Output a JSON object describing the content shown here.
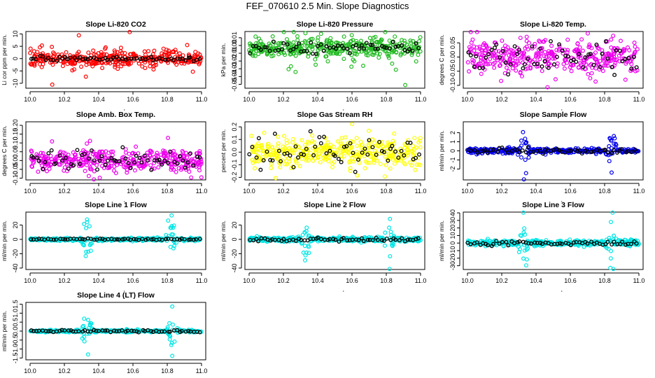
{
  "figure_title": "FEF_070610  2.5 Min. Slope Diagnostics",
  "chart_data": [
    {
      "type": "scatter",
      "title": "Slope Li-820 CO2",
      "ylabel": "Li cor ppm per min.",
      "color": "#ff0000",
      "xlim": [
        10.0,
        11.0
      ],
      "ylim": [
        -12,
        11
      ],
      "yticks": [
        -10,
        -5,
        0,
        5,
        10
      ],
      "xticks": [
        10.0,
        10.2,
        10.4,
        10.6,
        10.8,
        11.0
      ],
      "xticklabels": [
        "10.0",
        "10.2",
        "10.4",
        "10.6",
        "10.8",
        "11.0"
      ],
      "center": 0,
      "spread": 1.5,
      "outlier_amp": 6,
      "black_spread": 0.4,
      "seed": 11
    },
    {
      "type": "scatter",
      "title": "Slope Li-820 Pressure",
      "ylabel": "kPa per min.",
      "color": "#22bb22",
      "xlim": [
        10.0,
        11.0
      ],
      "ylim": [
        -0.055,
        0.018
      ],
      "yticks": [
        -0.05,
        -0.04,
        -0.03,
        -0.02,
        -0.01,
        0.0,
        0.01
      ],
      "yticklabels": [
        "-0.05",
        "-0.04",
        "-0.03",
        "-0.02",
        "-0.01",
        "0.00",
        "0.01"
      ],
      "xticks": [
        10.0,
        10.2,
        10.4,
        10.6,
        10.8,
        11.0
      ],
      "xticklabels": [
        "10.0",
        "10.2",
        "10.4",
        "10.6",
        "10.8",
        "11.0"
      ],
      "center": -0.003,
      "spread": 0.006,
      "outlier_amp": 0.03,
      "black_spread": 0.004,
      "seed": 23
    },
    {
      "type": "scatter",
      "title": "Slope Li-820 Temp.",
      "ylabel": "degrees C per min.",
      "color": "#ee00ee",
      "xlim": [
        10.0,
        11.0
      ],
      "ylim": [
        -0.11,
        0.09
      ],
      "yticks": [
        -0.1,
        -0.05,
        0.0,
        0.05
      ],
      "yticklabels": [
        "-0.10",
        "-0.05",
        "0.00",
        "0.05"
      ],
      "xticks": [
        10.0,
        10.2,
        10.4,
        10.6,
        10.8,
        11.0
      ],
      "xticklabels": [
        "10.0",
        "10.2",
        "10.4",
        "10.6",
        "10.8",
        "11.0"
      ],
      "center": 0.0,
      "spread": 0.03,
      "outlier_amp": 0.06,
      "black_spread": 0.03,
      "seed": 37
    },
    {
      "type": "scatter",
      "title": "Slope Amb. Box Temp.",
      "ylabel": "degrees C per min.",
      "color": "#ee00ee",
      "xlim": [
        10.0,
        11.0
      ],
      "ylim": [
        -0.11,
        0.22
      ],
      "yticks": [
        -0.1,
        -0.05,
        0.0,
        0.05,
        0.1,
        0.15,
        0.2
      ],
      "yticklabels": [
        "-0.10",
        "-0.05",
        "0.00",
        "0.05",
        "0.10",
        "0.15",
        "0.20"
      ],
      "xticks": [
        10.0,
        10.2,
        10.4,
        10.6,
        10.8,
        11.0
      ],
      "xticklabels": [
        "10.0",
        "10.2",
        "10.4",
        "10.6",
        "10.8",
        "11.0"
      ],
      "center": 0.0,
      "spread": 0.03,
      "outlier_amp": 0.1,
      "black_spread": 0.025,
      "seed": 41
    },
    {
      "type": "scatter",
      "title": "Slope Gas Stream RH",
      "ylabel": "percent per min.",
      "color": "#ffff00",
      "xlim": [
        10.0,
        11.0
      ],
      "ylim": [
        -0.22,
        0.24
      ],
      "yticks": [
        -0.2,
        -0.1,
        0.0,
        0.1,
        0.2
      ],
      "yticklabels": [
        "-0.2",
        "-0.1",
        "0.0",
        "0.1",
        "0.2"
      ],
      "xticks": [
        10.0,
        10.2,
        10.4,
        10.6,
        10.8,
        11.0
      ],
      "xticklabels": [
        "10.0",
        "10.2",
        "10.4",
        "10.6",
        "10.8",
        "11.0"
      ],
      "center": 0.0,
      "spread": 0.06,
      "outlier_amp": 0.16,
      "black_spread": 0.06,
      "seed": 53
    },
    {
      "type": "scatter",
      "title": "Slope Sample Flow",
      "ylabel": "ml/min per min.",
      "color": "#0000ee",
      "xlim": [
        10.0,
        11.0
      ],
      "ylim": [
        -3.2,
        3.2
      ],
      "yticks": [
        -2,
        -1,
        0,
        1,
        2
      ],
      "xticks": [
        10.0,
        10.2,
        10.4,
        10.6,
        10.8,
        11.0
      ],
      "xticklabels": [
        "10.0",
        "10.2",
        "10.4",
        "10.6",
        "10.8",
        "11.0"
      ],
      "center": 0,
      "spread": 0.12,
      "outlier_amp": 2.2,
      "black_spread": 0.15,
      "bursts": [
        10.33,
        10.84
      ],
      "seed": 67
    },
    {
      "type": "scatter",
      "title": "Slope Line 1 Flow",
      "ylabel": "ml/min per min.",
      "color": "#00e5e5",
      "xlim": [
        10.0,
        11.0
      ],
      "ylim": [
        -42,
        38
      ],
      "yticks": [
        -40,
        -20,
        0,
        20
      ],
      "xticks": [
        10.0,
        10.2,
        10.4,
        10.6,
        10.8,
        11.0
      ],
      "xticklabels": [
        "10.0",
        "10.2",
        "10.4",
        "10.6",
        "10.8",
        "11.0"
      ],
      "center": 0,
      "spread": 1.0,
      "outlier_amp": 34,
      "black_spread": 0.5,
      "bursts": [
        10.33,
        10.82
      ],
      "seed": 71
    },
    {
      "type": "scatter",
      "title": "Slope Line 2 Flow",
      "ylabel": "ml/min per min.",
      "color": "#00e5e5",
      "xlim": [
        10.0,
        11.0
      ],
      "ylim": [
        -42,
        38
      ],
      "yticks": [
        -40,
        -20,
        0,
        20
      ],
      "xticks": [
        10.0,
        10.2,
        10.4,
        10.6,
        10.8,
        11.0
      ],
      "xticklabels": [
        "10.0",
        "10.2",
        "10.4",
        "10.6",
        "10.8",
        "11.0"
      ],
      "center": 0,
      "spread": 1.5,
      "outlier_amp": 34,
      "black_spread": 1.0,
      "bursts": [
        10.33,
        10.82
      ],
      "seed": 83
    },
    {
      "type": "scatter",
      "title": "Slope Line 3 Flow",
      "ylabel": "ml/min per min.",
      "color": "#00e5e5",
      "xlim": [
        10.0,
        11.0
      ],
      "ylim": [
        -35,
        41
      ],
      "yticks": [
        -30,
        -20,
        -10,
        0,
        10,
        20,
        30,
        40
      ],
      "xticks": [
        10.0,
        10.2,
        10.4,
        10.6,
        10.8,
        11.0
      ],
      "xticklabels": [
        "10.0",
        "10.2",
        "10.4",
        "10.6",
        "10.8",
        "11.0"
      ],
      "center": 0,
      "spread": 2.0,
      "outlier_amp": 32,
      "black_spread": 1.5,
      "bursts": [
        10.33,
        10.84
      ],
      "seed": 97
    },
    {
      "type": "scatter",
      "title": "Slope Line 4 (LT) Flow",
      "ylabel": "ml/min per min.",
      "color": "#00e5e5",
      "xlim": [
        10.0,
        11.0
      ],
      "ylim": [
        -1.6,
        1.6
      ],
      "yticks": [
        -1.5,
        -1.0,
        -0.5,
        0.0,
        0.5,
        1.0,
        1.5
      ],
      "yticklabels": [
        "-1.5",
        "-1.0",
        "-0.5",
        "0.0",
        "0.5",
        "1.0",
        "1.5"
      ],
      "xticks": [
        10.0,
        10.2,
        10.4,
        10.6,
        10.8,
        11.0
      ],
      "xticklabels": [
        "10.0",
        "10.2",
        "10.4",
        "10.6",
        "10.8",
        "11.0"
      ],
      "center": 0,
      "spread": 0.03,
      "outlier_amp": 1.2,
      "black_spread": 0.03,
      "bursts": [
        10.33,
        10.83
      ],
      "seed": 101
    }
  ]
}
